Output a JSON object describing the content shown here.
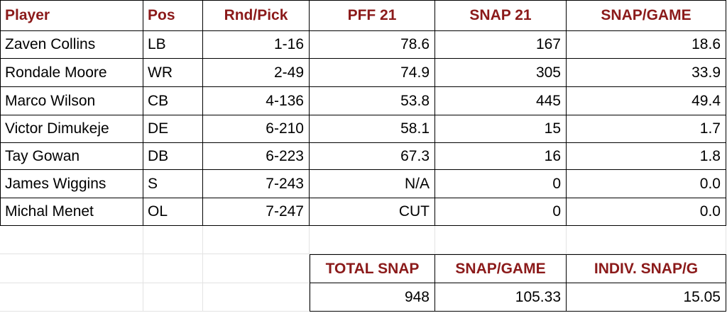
{
  "table": {
    "headers": [
      "Player",
      "Pos",
      "Rnd/Pick",
      "PFF 21",
      "SNAP 21",
      "SNAP/GAME"
    ],
    "rows": [
      [
        "Zaven Collins",
        "LB",
        "1-16",
        "78.6",
        "167",
        "18.6"
      ],
      [
        "Rondale Moore",
        "WR",
        "2-49",
        "74.9",
        "305",
        "33.9"
      ],
      [
        "Marco Wilson",
        "CB",
        "4-136",
        "53.8",
        "445",
        "49.4"
      ],
      [
        "Victor Dimukeje",
        "DE",
        "6-210",
        "58.1",
        "15",
        "1.7"
      ],
      [
        "Tay Gowan",
        "DB",
        "6-223",
        "67.3",
        "16",
        "1.8"
      ],
      [
        "James Wiggins",
        "S",
        "7-243",
        "N/A",
        "0",
        "0.0"
      ],
      [
        "Michal Menet",
        "OL",
        "7-247",
        "CUT",
        "0",
        "0.0"
      ]
    ]
  },
  "summary": {
    "headers": [
      "TOTAL SNAP",
      "SNAP/GAME",
      "INDIV. SNAP/G"
    ],
    "values": [
      "948",
      "105.33",
      "15.05"
    ]
  },
  "colors": {
    "header_text": "#8b1a1a",
    "border": "#000000",
    "gridline": "#e3e3e3"
  }
}
